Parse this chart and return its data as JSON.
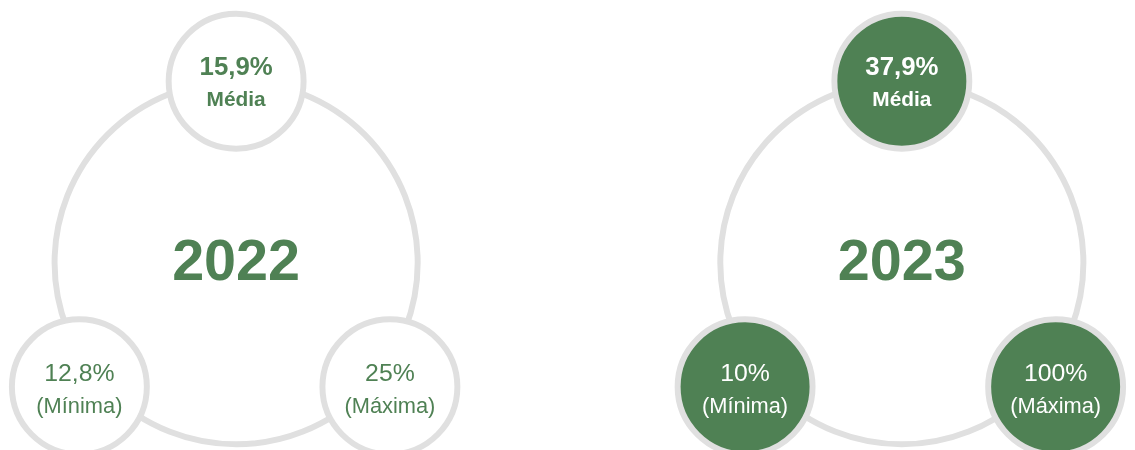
{
  "chart_data": [
    {
      "type": "other",
      "title": "2022",
      "color": "#4f8154",
      "categories": [
        "Média",
        "(Mínima)",
        "(Máxima)"
      ],
      "values": [
        15.9,
        12.8,
        25
      ],
      "value_labels": [
        "15,9%",
        "12,8%",
        "25%"
      ],
      "colors": [
        "#ffffff",
        "#ffffff",
        "#ffffff"
      ]
    },
    {
      "type": "other",
      "title": "2023",
      "color": "#4f8154",
      "categories": [
        "Média",
        "(Mínima)",
        "(Máxima)"
      ],
      "values": [
        37.9,
        10,
        100
      ],
      "value_labels": [
        "37,9%",
        "10%",
        "100%"
      ],
      "colors": [
        "#4f8154",
        "#4f8154",
        "#4f8154"
      ]
    }
  ]
}
